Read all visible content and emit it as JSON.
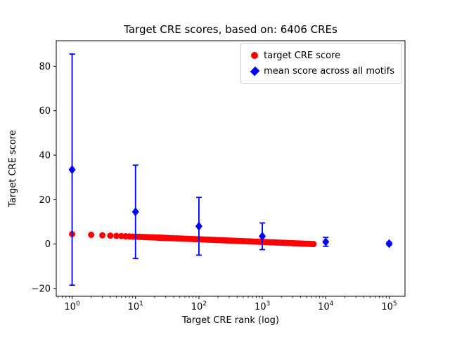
{
  "figure": {
    "background": "#ffffff"
  },
  "chart_data": {
    "type": "scatter",
    "title": "Target CRE scores, based on: 6406 CREs",
    "xlabel": "Target CRE rank (log)",
    "ylabel": "Target CRE score",
    "x_scale": "log",
    "x_log_range": [
      -0.25,
      5.25
    ],
    "ylim": [
      -23.5,
      91.5
    ],
    "grid": false,
    "xticks": {
      "base": 10,
      "exponents": [
        0,
        1,
        2,
        3,
        4,
        5
      ]
    },
    "yticks": [
      -20,
      0,
      20,
      40,
      60,
      80
    ],
    "legend": {
      "position": "upper right",
      "entries": [
        {
          "label": "target CRE score",
          "marker": "circle",
          "color": "#ff0000"
        },
        {
          "label": "mean score across all motifs",
          "marker": "diamond",
          "color": "#0000ff"
        }
      ]
    },
    "series": [
      {
        "name": "target CRE score",
        "type": "scatter",
        "marker": "circle",
        "color": "#ff0000",
        "n_points_total": 6406,
        "x": [
          1,
          2,
          3,
          4,
          5,
          6,
          7,
          8,
          9,
          10,
          11,
          12,
          13,
          14,
          15,
          16,
          17,
          18,
          19,
          20,
          21,
          22,
          23,
          24,
          25,
          26,
          27,
          28,
          29,
          30,
          32,
          35,
          37,
          40,
          44,
          47,
          51,
          55,
          59,
          64,
          69,
          75,
          81,
          87,
          94,
          102,
          110,
          119,
          128,
          138,
          149,
          161,
          174,
          188,
          203,
          219,
          237,
          256,
          276,
          298,
          322,
          348,
          376,
          406,
          438,
          473,
          511,
          552,
          596,
          644,
          695,
          751,
          811,
          876,
          946,
          1022,
          1104,
          1192,
          1287,
          1390,
          1501,
          1621,
          1751,
          1891,
          2042,
          2205,
          2382,
          2572,
          2778,
          3000,
          3240,
          3499,
          3779,
          4081,
          4407,
          4760,
          5141,
          5552,
          5996,
          6406
        ],
        "y": [
          4.5,
          4.14,
          3.94,
          3.79,
          3.68,
          3.58,
          3.5,
          3.43,
          3.37,
          3.32,
          3.27,
          3.23,
          3.19,
          3.15,
          3.11,
          3.08,
          3.05,
          3.02,
          2.99,
          2.96,
          2.94,
          2.92,
          2.89,
          2.87,
          2.85,
          2.83,
          2.81,
          2.79,
          2.77,
          2.76,
          2.72,
          2.68,
          2.65,
          2.61,
          2.56,
          2.53,
          2.48,
          2.45,
          2.41,
          2.37,
          2.33,
          2.29,
          2.25,
          2.21,
          2.17,
          2.13,
          2.09,
          2.05,
          2.01,
          1.98,
          1.94,
          1.9,
          1.86,
          1.82,
          1.78,
          1.74,
          1.7,
          1.66,
          1.62,
          1.58,
          1.54,
          1.5,
          1.46,
          1.42,
          1.38,
          1.34,
          1.3,
          1.26,
          1.23,
          1.19,
          1.15,
          1.11,
          1.07,
          1.03,
          0.99,
          0.95,
          0.91,
          0.87,
          0.83,
          0.79,
          0.75,
          0.71,
          0.67,
          0.63,
          0.59,
          0.56,
          0.52,
          0.48,
          0.44,
          0.4,
          0.36,
          0.32,
          0.28,
          0.24,
          0.2,
          0.16,
          0.12,
          0.08,
          0.04,
          0.01
        ]
      },
      {
        "name": "mean score across all motifs",
        "type": "errorbar",
        "marker": "diamond",
        "color": "#0000ff",
        "x": [
          1,
          10,
          100,
          1000,
          10000,
          100000
        ],
        "y": [
          33.5,
          14.5,
          8.0,
          3.5,
          1.0,
          0.2
        ],
        "yerr": [
          52,
          21,
          13,
          6,
          2,
          0.7
        ]
      }
    ]
  }
}
